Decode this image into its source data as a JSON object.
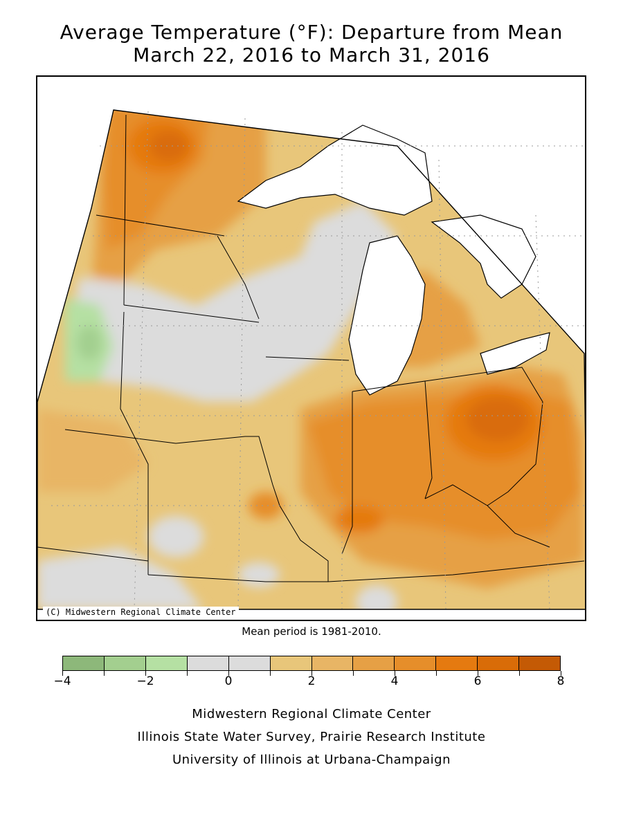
{
  "title": {
    "line1": "Average Temperature (°F): Departure from Mean",
    "line2": "March 22, 2016 to March 31, 2016"
  },
  "map": {
    "copyright": "(C) Midwestern Regional Climate Center",
    "region": "Midwest United States"
  },
  "mean_period": "Mean period is 1981-2010.",
  "legend": {
    "unit": "°F",
    "bins": [
      {
        "from": -4,
        "to": -3,
        "color": "#8db87a"
      },
      {
        "from": -3,
        "to": -2,
        "color": "#a3cf8f"
      },
      {
        "from": -2,
        "to": -1,
        "color": "#b5e0a3"
      },
      {
        "from": -1,
        "to": 0,
        "color": "#dcdcdc"
      },
      {
        "from": 0,
        "to": 1,
        "color": "#dcdcdc"
      },
      {
        "from": 1,
        "to": 2,
        "color": "#e8c67a"
      },
      {
        "from": 2,
        "to": 3,
        "color": "#e8b565"
      },
      {
        "from": 3,
        "to": 4,
        "color": "#e6a045"
      },
      {
        "from": 4,
        "to": 5,
        "color": "#e68e2a"
      },
      {
        "from": 5,
        "to": 6,
        "color": "#e57a10"
      },
      {
        "from": 6,
        "to": 7,
        "color": "#d96c08"
      },
      {
        "from": 7,
        "to": 8,
        "color": "#c45a05"
      }
    ],
    "tick_labels": [
      "-4",
      "-2",
      "0",
      "2",
      "4",
      "6",
      "8"
    ]
  },
  "credits": {
    "line1": "Midwestern Regional Climate Center",
    "line2": "Illinois State Water Survey, Prairie Research Institute",
    "line3": "University of Illinois at Urbana-Champaign"
  }
}
